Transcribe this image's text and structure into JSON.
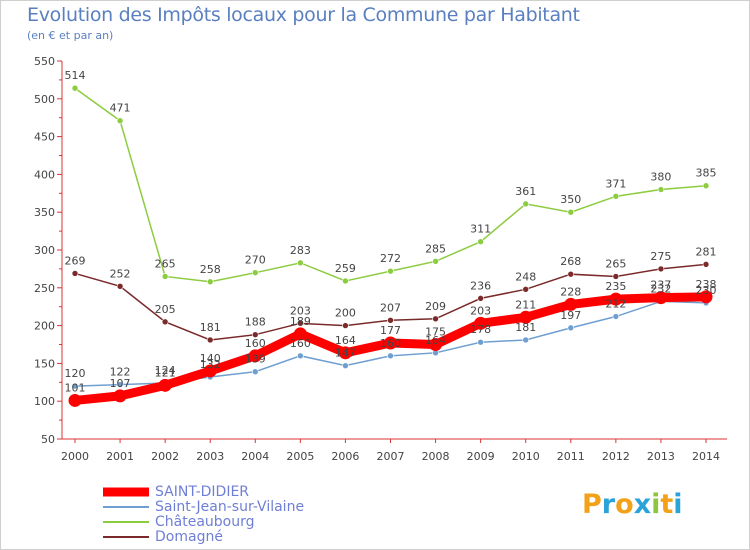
{
  "header": {
    "title": "Evolution des Impôts locaux pour la Commune par Habitant",
    "subtitle": "(en € et par an)"
  },
  "logo": {
    "letters": [
      "P",
      "r",
      "o",
      "x",
      "i",
      "t",
      "i"
    ],
    "colors": [
      "#f4a11a",
      "#2aa3d9",
      "#f4a11a",
      "#2aa3d9",
      "#8cc63f",
      "#f4a11a",
      "#2aa3d9"
    ]
  },
  "chart_data": {
    "type": "line",
    "title": "Evolution des Impôts locaux pour la Commune par Habitant",
    "subtitle": "(en € et par an)",
    "xlabel": "",
    "ylabel": "",
    "x": [
      2000,
      2001,
      2002,
      2003,
      2004,
      2005,
      2006,
      2007,
      2008,
      2009,
      2010,
      2011,
      2012,
      2013,
      2014
    ],
    "ylim": [
      50,
      550
    ],
    "yticks": [
      50,
      100,
      150,
      200,
      250,
      300,
      350,
      400,
      450,
      500,
      550
    ],
    "grid": false,
    "legend_position": "bottom-left",
    "series": [
      {
        "name": "SAINT-DIDIER",
        "color": "#ff0000",
        "emphasis": true,
        "values": [
          101,
          107,
          121,
          140,
          160,
          189,
          164,
          177,
          175,
          203,
          211,
          228,
          235,
          237,
          238
        ],
        "labels": [
          "101",
          "107",
          "121",
          "140",
          "160",
          "189",
          "164",
          "177",
          "175",
          "203",
          "211",
          "228",
          "235",
          "237",
          "238"
        ]
      },
      {
        "name": "Saint-Jean-sur-Vilaine",
        "color": "#6f9fd0",
        "emphasis": false,
        "values": [
          120,
          122,
          124,
          132,
          139,
          160,
          147,
          160,
          164,
          178,
          181,
          197,
          212,
          232,
          230
        ],
        "labels": [
          "120",
          "122",
          "124",
          "132",
          "139",
          "160",
          "147",
          "160",
          "164",
          "178",
          "181",
          "197",
          "212",
          "232",
          "230"
        ]
      },
      {
        "name": "Châteaubourg",
        "color": "#8ccc3f",
        "emphasis": false,
        "values": [
          514,
          471,
          265,
          258,
          270,
          283,
          259,
          272,
          285,
          311,
          361,
          350,
          371,
          380,
          385
        ],
        "labels": [
          "514",
          "471",
          "265",
          "258",
          "270",
          "283",
          "259",
          "272",
          "285",
          "311",
          "361",
          "350",
          "371",
          "380",
          "385"
        ]
      },
      {
        "name": "Domagné",
        "color": "#7a2a2a",
        "emphasis": false,
        "values": [
          269,
          252,
          205,
          181,
          188,
          203,
          200,
          207,
          209,
          236,
          248,
          268,
          265,
          275,
          281
        ],
        "labels": [
          "269",
          "252",
          "205",
          "181",
          "188",
          "203",
          "200",
          "207",
          "209",
          "236",
          "248",
          "268",
          "265",
          "275",
          "281"
        ]
      }
    ]
  }
}
